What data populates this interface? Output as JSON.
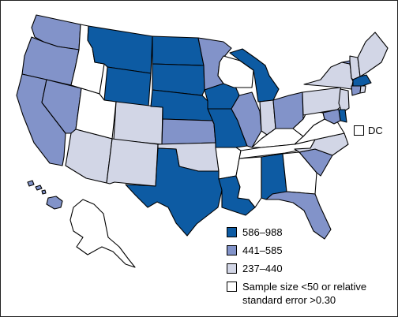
{
  "colors": {
    "c1": "#0d5ba3",
    "c2": "#8293c9",
    "c3": "#d2d6e6",
    "c4": "#ffffff"
  },
  "dc": {
    "label": "DC",
    "class": "c4"
  },
  "legend": [
    {
      "label": "586–988",
      "class": "c1"
    },
    {
      "label": "441–585",
      "class": "c2"
    },
    {
      "label": "237–440",
      "class": "c3"
    },
    {
      "label": "Sample size <50 or relative standard error >0.30",
      "class": "c4"
    }
  ],
  "states": {
    "WA": "c2",
    "OR": "c2",
    "CA": "c2",
    "NV": "c2",
    "ID": "c4",
    "MT": "c1",
    "WY": "c1",
    "UT": "c4",
    "AZ": "c3",
    "CO": "c3",
    "NM": "c3",
    "ND": "c1",
    "SD": "c1",
    "NE": "c1",
    "KS": "c2",
    "OK": "c3",
    "TX": "c1",
    "MN": "c2",
    "IA": "c1",
    "MO": "c1",
    "AR": "c4",
    "LA": "c1",
    "WI": "c4",
    "IL": "c2",
    "MI": "c1",
    "IN": "c3",
    "OH": "c2",
    "KY": "c4",
    "TN": "c4",
    "MS": "c4",
    "AL": "c1",
    "GA": "c4",
    "FL": "c2",
    "SC": "c2",
    "NC": "c3",
    "VA": "c4",
    "WV": "c4",
    "PA": "c3",
    "NY": "c3",
    "VT": "c2",
    "NH": "c3",
    "ME": "c3",
    "MA": "c1",
    "CT": "c2",
    "RI": "c3",
    "NJ": "c3",
    "DE": "c1",
    "MD": "c2",
    "AK": "c4",
    "HI": "c2"
  }
}
